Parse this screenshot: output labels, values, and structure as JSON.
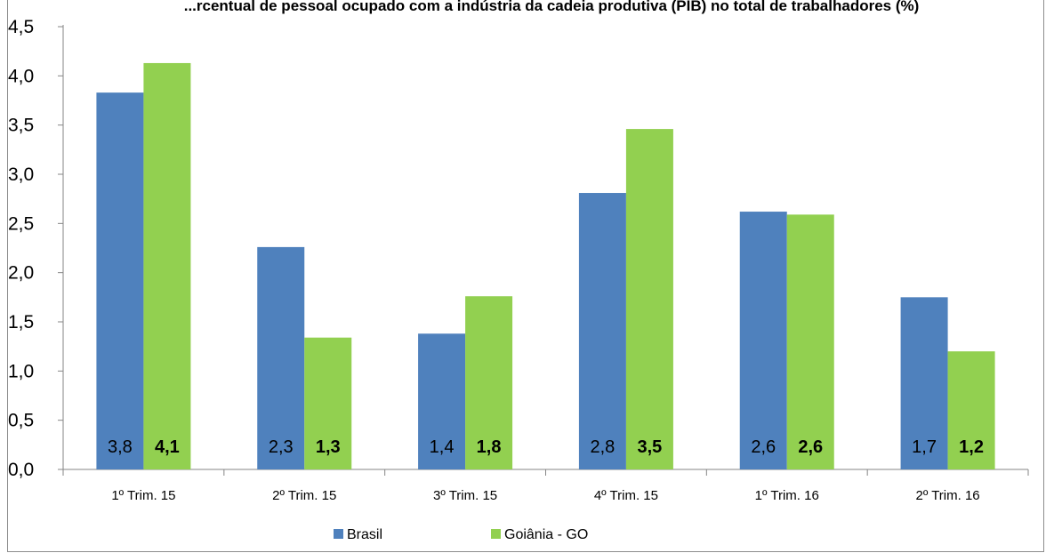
{
  "chart_data": {
    "type": "bar",
    "title": "",
    "title_visible_fragment": "...rcentual de pessoal ocupado com a indústria da cadeia produtiva (PIB) no total de trabalhadores (%)",
    "categories": [
      "1º Trim. 15",
      "2º Trim. 15",
      "3º Trim. 15",
      "4º Trim. 15",
      "1º Trim. 16",
      "2º Trim. 16"
    ],
    "series": [
      {
        "name": "Brasil",
        "color": "#4f81bd",
        "values": [
          3.83,
          2.26,
          1.38,
          2.81,
          2.62,
          1.75
        ],
        "labels": [
          "3,8",
          "2,3",
          "1,4",
          "2,8",
          "2,6",
          "1,7"
        ],
        "label_bold": false
      },
      {
        "name": "Goiânia - GO",
        "color": "#92d050",
        "values": [
          4.13,
          1.34,
          1.76,
          3.46,
          2.59,
          1.2
        ],
        "labels": [
          "4,1",
          "1,3",
          "1,8",
          "3,5",
          "2,6",
          "1,2"
        ],
        "label_bold": true
      }
    ],
    "ylim": [
      0,
      4.5
    ],
    "yticks": [
      "0,0",
      "0,5",
      "1,0",
      "1,5",
      "2,0",
      "2,5",
      "3,0",
      "3,5",
      "4,0",
      "4,5"
    ],
    "ytick_values": [
      0,
      0.5,
      1,
      1.5,
      2,
      2.5,
      3,
      3.5,
      4,
      4.5
    ],
    "grid": false,
    "legend": "bottom",
    "xlabel": "",
    "ylabel": ""
  }
}
